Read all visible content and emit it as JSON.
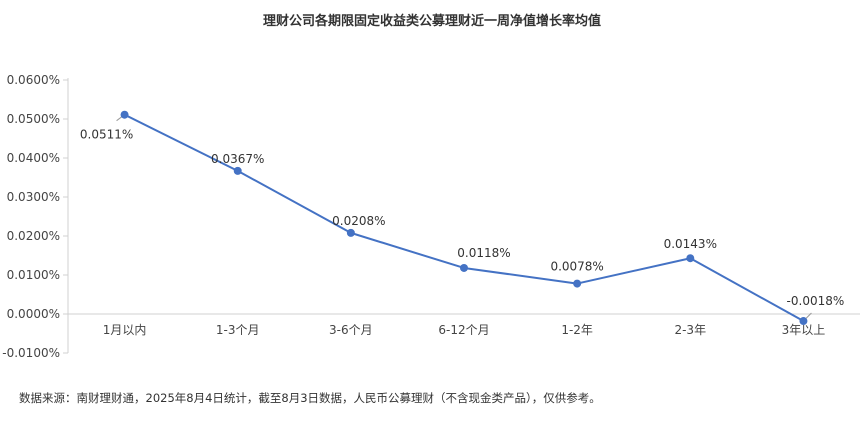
{
  "title": "理财公司各期限固定收益类公募理财近一周净值增长率均值",
  "footnote": "数据来源：南财理财通，2025年8月4日统计，截至8月3日数据，人民币公募理财（不含现金类产品），仅供参考。",
  "colors": {
    "line": "#4472C4",
    "axis": "#d0d0d0",
    "text": "#333333"
  },
  "chart_data": {
    "type": "line",
    "title": "理财公司各期限固定收益类公募理财近一周净值增长率均值",
    "xlabel": "",
    "ylabel": "",
    "categories": [
      "1月以内",
      "1-3个月",
      "3-6个月",
      "6-12个月",
      "1-2年",
      "2-3年",
      "3年以上"
    ],
    "series": [
      {
        "values": [
          0.0511,
          0.0367,
          0.0208,
          0.0118,
          0.0078,
          0.0143,
          -0.0018
        ],
        "labels": [
          "0.0511%",
          "0.0367%",
          "0.0208%",
          "0.0118%",
          "0.0078%",
          "0.0143%",
          "-0.0018%"
        ]
      }
    ],
    "ylim": [
      -0.01,
      0.06
    ],
    "yticks": [
      0.06,
      0.05,
      0.04,
      0.03,
      0.02,
      0.01,
      0.0,
      -0.01
    ],
    "ytick_labels": [
      "0.0600%",
      "0.0500%",
      "0.0400%",
      "0.0300%",
      "0.0200%",
      "0.0100%",
      "0.0000%",
      "-0.0100%"
    ],
    "grid": false,
    "legend": "none"
  }
}
